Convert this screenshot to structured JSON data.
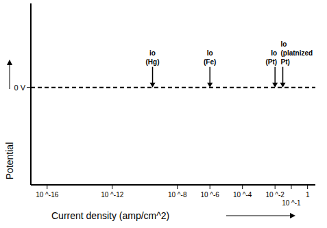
{
  "chart_data": {
    "type": "line",
    "xlabel": "Current density (amp/cm^2)",
    "ylabel": "Potential",
    "log": "x",
    "xlim": [
      1e-17,
      3
    ],
    "xticks": [
      {
        "value": 1e-16,
        "label": "10 ^-16"
      },
      {
        "value": 1e-12,
        "label": "10 ^-12"
      },
      {
        "value": 1e-08,
        "label": "10 ^-8"
      },
      {
        "value": 1e-06,
        "label": "10 ^-6"
      },
      {
        "value": 0.0001,
        "label": "10 ^-4"
      },
      {
        "value": 0.01,
        "label": "10 ^-2"
      },
      {
        "value": 0.1,
        "label": "10 ^-1"
      },
      1
    ],
    "ylim": [
      -2.9,
      2.5
    ],
    "yticks": [
      {
        "value": 0,
        "label": "0 V"
      }
    ],
    "x": [
      1e-17,
      3
    ],
    "values": [
      0,
      0
    ],
    "color": "#000000",
    "line_style": "dashed",
    "annotations": [
      {
        "text": [
          "io",
          "(Hg)"
        ],
        "x": 3e-10,
        "y": 0
      },
      {
        "text": [
          "Io",
          "(Fe)"
        ],
        "x": 1e-06,
        "y": 0
      },
      {
        "text": [
          "Io",
          "(Pt)"
        ],
        "x": 0.01,
        "y": 0
      },
      {
        "text": [
          "Io",
          "(platnized",
          "Pt)"
        ],
        "x": 0.03,
        "y": 0
      }
    ]
  }
}
